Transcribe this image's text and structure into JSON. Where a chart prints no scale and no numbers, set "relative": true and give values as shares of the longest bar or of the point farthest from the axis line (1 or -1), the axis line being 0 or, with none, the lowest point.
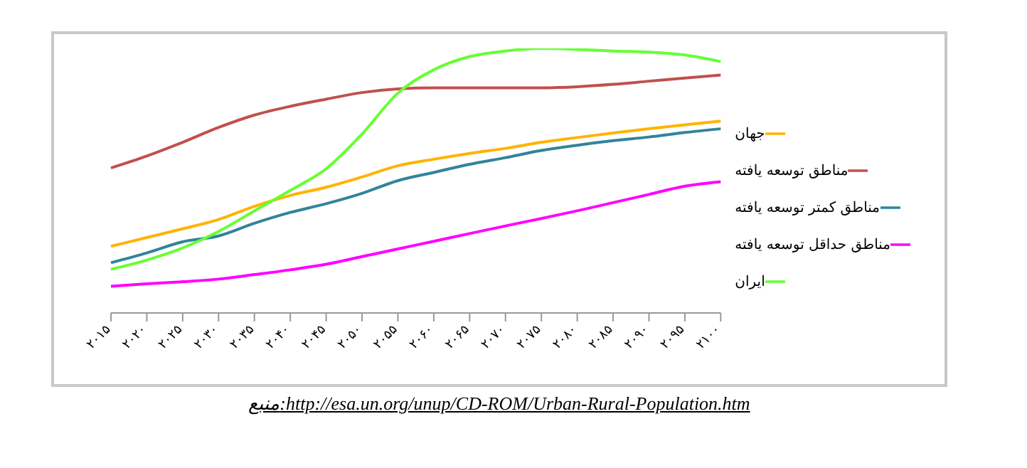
{
  "chart_data": {
    "type": "line",
    "relative": true,
    "categories": [
      "۲۰۱۵",
      "۲۰۲۰",
      "۲۰۲۵",
      "۲۰۳۰",
      "۲۰۳۵",
      "۲۰۴۰",
      "۲۰۴۵",
      "۲۰۵۰",
      "۲۰۵۵",
      "۲۰۶۰",
      "۲۰۶۵",
      "۲۰۷۰",
      "۲۰۷۵",
      "۲۰۸۰",
      "۲۰۸۵",
      "۲۰۹۰",
      "۲۰۹۵",
      "۲۱۰۰"
    ],
    "series": [
      {
        "name": "جهان",
        "color": "#ffb300",
        "values": [
          0.252,
          0.285,
          0.318,
          0.353,
          0.403,
          0.444,
          0.475,
          0.514,
          0.556,
          0.581,
          0.603,
          0.622,
          0.645,
          0.663,
          0.68,
          0.696,
          0.711,
          0.725
        ]
      },
      {
        "name": "مناطق توسعه یافته",
        "color": "#c0504d",
        "values": [
          0.548,
          0.593,
          0.645,
          0.701,
          0.748,
          0.781,
          0.808,
          0.833,
          0.847,
          0.851,
          0.851,
          0.851,
          0.851,
          0.855,
          0.864,
          0.876,
          0.888,
          0.899
        ]
      },
      {
        "name": "مناطق کمتر توسعه یافته",
        "color": "#31849b",
        "values": [
          0.19,
          0.227,
          0.269,
          0.291,
          0.339,
          0.38,
          0.413,
          0.452,
          0.5,
          0.531,
          0.562,
          0.587,
          0.614,
          0.634,
          0.651,
          0.665,
          0.682,
          0.696
        ]
      },
      {
        "name": "مناطق حداقل توسعه یافته",
        "color": "#ff00ff",
        "values": [
          0.101,
          0.11,
          0.118,
          0.128,
          0.145,
          0.163,
          0.184,
          0.213,
          0.242,
          0.271,
          0.3,
          0.329,
          0.357,
          0.386,
          0.417,
          0.448,
          0.479,
          0.496
        ]
      },
      {
        "name": "ایران",
        "color": "#66ff33",
        "values": [
          0.165,
          0.2,
          0.246,
          0.308,
          0.386,
          0.463,
          0.545,
          0.676,
          0.831,
          0.919,
          0.969,
          0.99,
          1,
          0.996,
          0.99,
          0.986,
          0.975,
          0.95
        ]
      }
    ],
    "legend": "right",
    "grid": false,
    "marker": "none",
    "line_style": "solid",
    "annotations": [
      "منبع:http://esa.un.org/unup/CD-ROM/Urban-Rural-Population.htm"
    ]
  }
}
